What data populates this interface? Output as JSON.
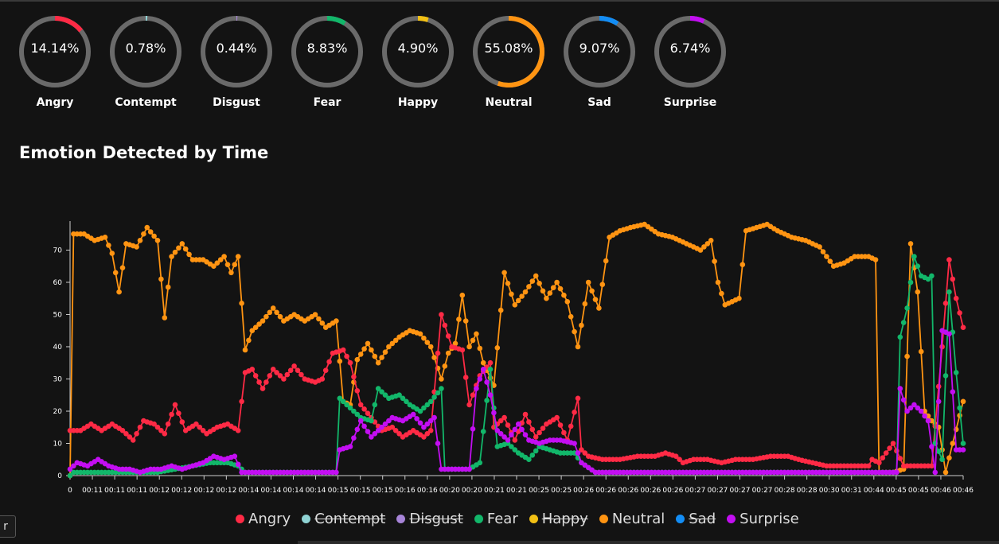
{
  "gauges": [
    {
      "value": "14.14%",
      "pct": 14.14,
      "label": "Angry",
      "color": "#ff2a45"
    },
    {
      "value": "0.78%",
      "pct": 0.78,
      "label": "Contempt",
      "color": "#8fd3d4"
    },
    {
      "value": "0.44%",
      "pct": 0.44,
      "label": "Disgust",
      "color": "#a784d8"
    },
    {
      "value": "8.83%",
      "pct": 8.83,
      "label": "Fear",
      "color": "#12b76a"
    },
    {
      "value": "4.90%",
      "pct": 4.9,
      "label": "Happy",
      "color": "#f2c014"
    },
    {
      "value": "55.08%",
      "pct": 55.08,
      "label": "Neutral",
      "color": "#ff9412"
    },
    {
      "value": "9.07%",
      "pct": 9.07,
      "label": "Sad",
      "color": "#138df5"
    },
    {
      "value": "6.74%",
      "pct": 6.74,
      "label": "Surprise",
      "color": "#c30ef2"
    }
  ],
  "section_title": "Emotion Detected by Time",
  "side_tab": "r",
  "chart_data": {
    "type": "line",
    "title": "",
    "xlabel": "",
    "ylabel": "",
    "ylim": [
      0,
      79
    ],
    "yticks": [
      0,
      10,
      20,
      30,
      40,
      50,
      60,
      70
    ],
    "xtick_labels": [
      "0",
      "00:11",
      "00:11",
      "00:11",
      "00:12",
      "00:12",
      "00:12",
      "00:12",
      "00:14",
      "00:14",
      "00:14",
      "00:14",
      "00:15",
      "00:15",
      "00:15",
      "00:16",
      "00:16",
      "00:20",
      "00:20",
      "00:21",
      "00:21",
      "00:25",
      "00:25",
      "00:26",
      "00:26",
      "00:26",
      "00:26",
      "00:26",
      "00:27",
      "00:27",
      "00:27",
      "00:27",
      "00:28",
      "00:28",
      "00:30",
      "00:31",
      "00:44",
      "00:45",
      "00:45",
      "00:46",
      "00:46"
    ],
    "n_points": 256,
    "grid": false,
    "legend_position": "bottom",
    "series": [
      {
        "name": "Angry",
        "color": "#ff2a45",
        "hidden": false,
        "keyframes": [
          [
            0,
            14
          ],
          [
            3,
            14
          ],
          [
            6,
            16
          ],
          [
            9,
            14
          ],
          [
            12,
            16
          ],
          [
            15,
            14
          ],
          [
            18,
            11
          ],
          [
            21,
            17
          ],
          [
            24,
            16
          ],
          [
            27,
            13
          ],
          [
            30,
            22
          ],
          [
            33,
            14
          ],
          [
            36,
            16
          ],
          [
            39,
            13
          ],
          [
            42,
            15
          ],
          [
            45,
            16
          ],
          [
            48,
            14
          ],
          [
            48,
            14
          ],
          [
            50,
            32
          ],
          [
            52,
            33
          ],
          [
            55,
            27
          ],
          [
            58,
            33
          ],
          [
            61,
            30
          ],
          [
            64,
            34
          ],
          [
            67,
            30
          ],
          [
            70,
            29
          ],
          [
            72,
            30
          ],
          [
            75,
            38
          ],
          [
            78,
            39
          ],
          [
            80,
            35
          ],
          [
            83,
            22
          ],
          [
            86,
            18
          ],
          [
            89,
            14
          ],
          [
            92,
            15
          ],
          [
            95,
            12
          ],
          [
            98,
            14
          ],
          [
            101,
            12
          ],
          [
            103,
            14
          ],
          [
            106,
            50
          ],
          [
            109,
            40
          ],
          [
            112,
            39
          ],
          [
            114,
            22
          ],
          [
            117,
            31
          ],
          [
            120,
            35
          ],
          [
            121,
            15
          ],
          [
            124,
            18
          ],
          [
            127,
            11
          ],
          [
            130,
            19
          ],
          [
            133,
            12
          ],
          [
            136,
            16
          ],
          [
            139,
            18
          ],
          [
            142,
            11
          ],
          [
            145,
            24
          ],
          [
            146,
            8
          ],
          [
            148,
            6
          ],
          [
            152,
            5
          ],
          [
            157,
            5
          ],
          [
            162,
            6
          ],
          [
            167,
            6
          ],
          [
            170,
            7
          ],
          [
            173,
            6
          ],
          [
            175,
            4
          ],
          [
            178,
            5
          ],
          [
            182,
            5
          ],
          [
            186,
            4
          ],
          [
            190,
            5
          ],
          [
            195,
            5
          ],
          [
            200,
            6
          ],
          [
            205,
            6
          ],
          [
            208,
            5
          ],
          [
            212,
            4
          ],
          [
            216,
            3
          ],
          [
            220,
            3
          ],
          [
            225,
            3
          ],
          [
            228,
            3
          ],
          [
            229,
            5
          ],
          [
            231,
            4
          ],
          [
            233,
            7
          ],
          [
            235,
            10
          ],
          [
            238,
            3
          ],
          [
            242,
            3
          ],
          [
            246,
            3
          ],
          [
            249,
            40
          ],
          [
            251,
            67
          ],
          [
            253,
            55
          ],
          [
            255,
            46
          ]
        ]
      },
      {
        "name": "Contempt",
        "color": "#8fd3d4",
        "hidden": true,
        "keyframes": [
          [
            0,
            1
          ],
          [
            255,
            1
          ]
        ]
      },
      {
        "name": "Disgust",
        "color": "#a784d8",
        "hidden": true,
        "keyframes": [
          [
            0,
            1
          ],
          [
            255,
            1
          ]
        ]
      },
      {
        "name": "Fear",
        "color": "#12b76a",
        "hidden": false,
        "keyframes": [
          [
            0,
            0
          ],
          [
            1,
            1
          ],
          [
            5,
            1
          ],
          [
            10,
            1
          ],
          [
            15,
            1
          ],
          [
            20,
            1
          ],
          [
            25,
            1
          ],
          [
            30,
            2
          ],
          [
            35,
            3
          ],
          [
            40,
            4
          ],
          [
            45,
            4
          ],
          [
            48,
            3
          ],
          [
            50,
            1
          ],
          [
            70,
            1
          ],
          [
            76,
            1
          ],
          [
            77,
            24
          ],
          [
            80,
            21
          ],
          [
            83,
            18
          ],
          [
            86,
            17
          ],
          [
            88,
            27
          ],
          [
            91,
            24
          ],
          [
            94,
            25
          ],
          [
            97,
            22
          ],
          [
            100,
            20
          ],
          [
            103,
            23
          ],
          [
            106,
            27
          ],
          [
            107,
            2
          ],
          [
            114,
            2
          ],
          [
            117,
            4
          ],
          [
            120,
            33
          ],
          [
            122,
            9
          ],
          [
            125,
            10
          ],
          [
            128,
            7
          ],
          [
            131,
            5
          ],
          [
            134,
            9
          ],
          [
            137,
            8
          ],
          [
            140,
            7
          ],
          [
            144,
            7
          ],
          [
            146,
            4
          ],
          [
            150,
            1
          ],
          [
            200,
            1
          ],
          [
            236,
            1
          ],
          [
            237,
            43
          ],
          [
            239,
            52
          ],
          [
            241,
            68
          ],
          [
            243,
            62
          ],
          [
            245,
            61
          ],
          [
            246,
            62
          ],
          [
            247,
            10
          ],
          [
            249,
            5
          ],
          [
            251,
            57
          ],
          [
            253,
            32
          ],
          [
            255,
            10
          ]
        ]
      },
      {
        "name": "Happy",
        "color": "#f2c014",
        "hidden": true,
        "keyframes": [
          [
            0,
            1
          ],
          [
            255,
            1
          ]
        ]
      },
      {
        "name": "Neutral",
        "color": "#ff9412",
        "hidden": false,
        "keyframes": [
          [
            0,
            0
          ],
          [
            1,
            75
          ],
          [
            4,
            75
          ],
          [
            7,
            73
          ],
          [
            10,
            74
          ],
          [
            12,
            69
          ],
          [
            14,
            57
          ],
          [
            16,
            72
          ],
          [
            19,
            71
          ],
          [
            22,
            77
          ],
          [
            25,
            73
          ],
          [
            27,
            49
          ],
          [
            29,
            68
          ],
          [
            32,
            72
          ],
          [
            35,
            67
          ],
          [
            38,
            67
          ],
          [
            41,
            65
          ],
          [
            44,
            68
          ],
          [
            46,
            63
          ],
          [
            48,
            68
          ],
          [
            50,
            39
          ],
          [
            52,
            45
          ],
          [
            55,
            48
          ],
          [
            58,
            52
          ],
          [
            61,
            48
          ],
          [
            64,
            50
          ],
          [
            67,
            48
          ],
          [
            70,
            50
          ],
          [
            73,
            46
          ],
          [
            76,
            48
          ],
          [
            78,
            23
          ],
          [
            80,
            22
          ],
          [
            82,
            36
          ],
          [
            85,
            41
          ],
          [
            88,
            35
          ],
          [
            91,
            40
          ],
          [
            94,
            43
          ],
          [
            97,
            45
          ],
          [
            100,
            44
          ],
          [
            103,
            40
          ],
          [
            106,
            30
          ],
          [
            108,
            38
          ],
          [
            110,
            41
          ],
          [
            112,
            56
          ],
          [
            114,
            40
          ],
          [
            116,
            44
          ],
          [
            118,
            35
          ],
          [
            121,
            28
          ],
          [
            124,
            63
          ],
          [
            127,
            53
          ],
          [
            130,
            57
          ],
          [
            133,
            62
          ],
          [
            136,
            55
          ],
          [
            139,
            60
          ],
          [
            142,
            54
          ],
          [
            145,
            40
          ],
          [
            148,
            60
          ],
          [
            151,
            52
          ],
          [
            154,
            74
          ],
          [
            157,
            76
          ],
          [
            160,
            77
          ],
          [
            164,
            78
          ],
          [
            168,
            75
          ],
          [
            172,
            74
          ],
          [
            176,
            72
          ],
          [
            180,
            70
          ],
          [
            183,
            73
          ],
          [
            185,
            60
          ],
          [
            187,
            53
          ],
          [
            189,
            54
          ],
          [
            191,
            55
          ],
          [
            193,
            76
          ],
          [
            196,
            77
          ],
          [
            199,
            78
          ],
          [
            202,
            76
          ],
          [
            206,
            74
          ],
          [
            210,
            73
          ],
          [
            214,
            71
          ],
          [
            218,
            65
          ],
          [
            221,
            66
          ],
          [
            224,
            68
          ],
          [
            228,
            68
          ],
          [
            230,
            67
          ],
          [
            231,
            1
          ],
          [
            235,
            1
          ],
          [
            238,
            2
          ],
          [
            240,
            72
          ],
          [
            242,
            57
          ],
          [
            244,
            20
          ],
          [
            246,
            17
          ],
          [
            248,
            15
          ],
          [
            250,
            1
          ],
          [
            252,
            10
          ],
          [
            255,
            23
          ]
        ]
      },
      {
        "name": "Sad",
        "color": "#138df5",
        "hidden": true,
        "keyframes": [
          [
            0,
            1
          ],
          [
            255,
            1
          ]
        ]
      },
      {
        "name": "Surprise",
        "color": "#c30ef2",
        "hidden": false,
        "keyframes": [
          [
            0,
            2
          ],
          [
            2,
            4
          ],
          [
            5,
            3
          ],
          [
            8,
            5
          ],
          [
            11,
            3
          ],
          [
            14,
            2
          ],
          [
            17,
            2
          ],
          [
            20,
            1
          ],
          [
            23,
            2
          ],
          [
            26,
            2
          ],
          [
            29,
            3
          ],
          [
            32,
            2
          ],
          [
            35,
            3
          ],
          [
            38,
            4
          ],
          [
            41,
            6
          ],
          [
            44,
            5
          ],
          [
            47,
            6
          ],
          [
            49,
            1
          ],
          [
            55,
            1
          ],
          [
            60,
            1
          ],
          [
            65,
            1
          ],
          [
            70,
            1
          ],
          [
            76,
            1
          ],
          [
            77,
            8
          ],
          [
            80,
            9
          ],
          [
            83,
            17
          ],
          [
            86,
            12
          ],
          [
            89,
            15
          ],
          [
            92,
            18
          ],
          [
            95,
            17
          ],
          [
            98,
            19
          ],
          [
            101,
            15
          ],
          [
            104,
            18
          ],
          [
            106,
            2
          ],
          [
            110,
            2
          ],
          [
            114,
            2
          ],
          [
            116,
            27
          ],
          [
            118,
            33
          ],
          [
            120,
            25
          ],
          [
            122,
            14
          ],
          [
            125,
            11
          ],
          [
            128,
            16
          ],
          [
            131,
            11
          ],
          [
            134,
            10
          ],
          [
            137,
            11
          ],
          [
            140,
            11
          ],
          [
            144,
            10
          ],
          [
            146,
            4
          ],
          [
            150,
            1
          ],
          [
            200,
            1
          ],
          [
            236,
            1
          ],
          [
            237,
            27
          ],
          [
            239,
            20
          ],
          [
            241,
            22
          ],
          [
            243,
            20
          ],
          [
            245,
            17
          ],
          [
            247,
            1
          ],
          [
            249,
            45
          ],
          [
            251,
            44
          ],
          [
            253,
            8
          ],
          [
            255,
            8
          ]
        ]
      }
    ]
  }
}
